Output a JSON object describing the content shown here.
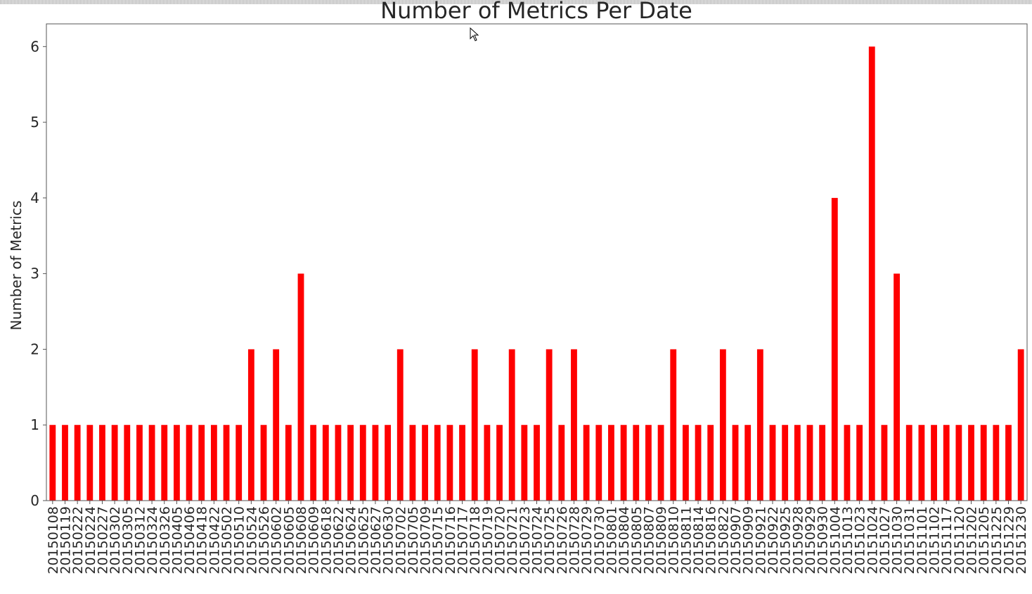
{
  "chart_data": {
    "type": "bar",
    "title": "Number of Metrics Per Date",
    "xlabel": "",
    "ylabel": "Number of Metrics",
    "ylim": [
      0,
      6.3
    ],
    "yticks": [
      0,
      1,
      2,
      3,
      4,
      5,
      6
    ],
    "grid": false,
    "bar_color": "#ff0000",
    "categories": [
      "20150108",
      "20150119",
      "20150222",
      "20150224",
      "20150227",
      "20150302",
      "20150305",
      "20150312",
      "20150324",
      "20150326",
      "20150405",
      "20150406",
      "20150418",
      "20150422",
      "20150502",
      "20150510",
      "20150524",
      "20150526",
      "20150602",
      "20150605",
      "20150608",
      "20150609",
      "20150618",
      "20150622",
      "20150624",
      "20150625",
      "20150627",
      "20150630",
      "20150702",
      "20150705",
      "20150709",
      "20150715",
      "20150716",
      "20150717",
      "20150718",
      "20150719",
      "20150720",
      "20150721",
      "20150723",
      "20150724",
      "20150725",
      "20150726",
      "20150728",
      "20150729",
      "20150730",
      "20150801",
      "20150804",
      "20150805",
      "20150807",
      "20150809",
      "20150810",
      "20150811",
      "20150814",
      "20150816",
      "20150822",
      "20150907",
      "20150909",
      "20150921",
      "20150922",
      "20150925",
      "20150928",
      "20150929",
      "20150930",
      "20151004",
      "20151013",
      "20151023",
      "20151024",
      "20151027",
      "20151030",
      "20151031",
      "20151101",
      "20151102",
      "20151117",
      "20151120",
      "20151202",
      "20151205",
      "20151225",
      "20151229",
      "20151230"
    ],
    "values": [
      1,
      1,
      1,
      1,
      1,
      1,
      1,
      1,
      1,
      1,
      1,
      1,
      1,
      1,
      1,
      1,
      2,
      1,
      2,
      1,
      3,
      1,
      1,
      1,
      1,
      1,
      1,
      1,
      2,
      1,
      1,
      1,
      1,
      1,
      2,
      1,
      1,
      2,
      1,
      1,
      2,
      1,
      2,
      1,
      1,
      1,
      1,
      1,
      1,
      1,
      2,
      1,
      1,
      1,
      2,
      1,
      1,
      2,
      1,
      1,
      1,
      1,
      1,
      4,
      1,
      1,
      6,
      1,
      3,
      1,
      1,
      1,
      1,
      1,
      1,
      1,
      1,
      1,
      2
    ]
  }
}
